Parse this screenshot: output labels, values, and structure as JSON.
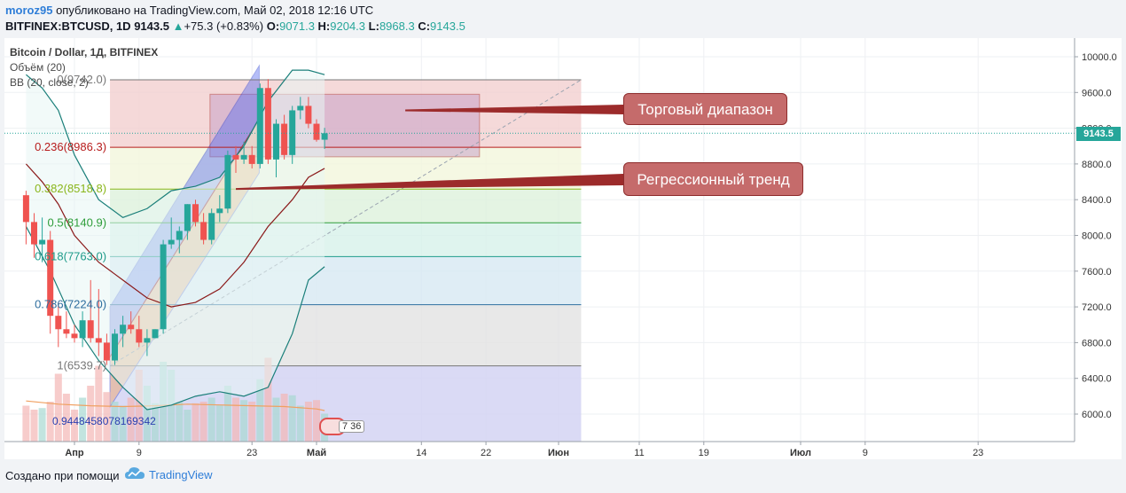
{
  "header": {
    "author": "moroz95",
    "published_text": " опубликовано на TradingView.com, Май 02, 2018 12:16 UTC",
    "symbol": "BITFINEX:BTCUSD, 1D",
    "price": "9143.5",
    "change_arrow": "▲",
    "change": "+75.3 (+0.83%)",
    "o_label": "O:",
    "o_value": "9071.3",
    "h_label": "H:",
    "h_value": "9204.3",
    "l_label": "L:",
    "l_value": "8968.3",
    "c_label": "C:",
    "c_value": "9143.5"
  },
  "legend": {
    "title": "Bitcoin / Dollar, 1Д, BITFINEX",
    "volume": "Объём (20)",
    "bb": "BB (20, close, 2)"
  },
  "annotations": {
    "trading_range": "Торговый диапазон",
    "regression_trend": "Регрессионный тренд",
    "volume_value": "0.9448458078169342",
    "events_badge": "7 36"
  },
  "footer": {
    "made_with": "Создано при помощи",
    "brand": "TradingView"
  },
  "colors": {
    "up": "#26a69a",
    "down": "#ef5350",
    "bb_line": "#1b7f7a",
    "bb_basis": "#8b1a1a",
    "price_label": "#26a69a"
  },
  "chart_data": {
    "type": "candlestick",
    "title": "Bitcoin / Dollar, 1Д, BITFINEX",
    "ylim": [
      5700,
      10200
    ],
    "y_ticks": [
      6000,
      6400,
      6800,
      7200,
      7600,
      8000,
      8400,
      8800,
      9200,
      9600,
      10000
    ],
    "y_tick_labels": [
      "6000.0",
      "6400.0",
      "6800.0",
      "7200.0",
      "7600.0",
      "8000.0",
      "8400.0",
      "8800.0",
      "9200.0",
      "9600.0",
      "10000.0"
    ],
    "x_ticks": [
      {
        "day": 0,
        "label": "Апр"
      },
      {
        "day": 8,
        "label": "9"
      },
      {
        "day": 22,
        "label": "23"
      },
      {
        "day": 30,
        "label": "Май"
      },
      {
        "day": 43,
        "label": "14"
      },
      {
        "day": 51,
        "label": "22"
      },
      {
        "day": 60,
        "label": "Июн"
      },
      {
        "day": 70,
        "label": "11"
      },
      {
        "day": 78,
        "label": "19"
      },
      {
        "day": 90,
        "label": "Июл"
      },
      {
        "day": 98,
        "label": "9"
      },
      {
        "day": 112,
        "label": "23"
      }
    ],
    "candles": [
      {
        "day": -6,
        "o": 8450,
        "h": 8500,
        "l": 7900,
        "c": 8150,
        "v": 0.45
      },
      {
        "day": -5,
        "o": 8150,
        "h": 8250,
        "l": 7750,
        "c": 7900,
        "v": 0.4
      },
      {
        "day": -4,
        "o": 7900,
        "h": 8200,
        "l": 7700,
        "c": 7950,
        "v": 0.42
      },
      {
        "day": -3,
        "o": 7950,
        "h": 8050,
        "l": 6900,
        "c": 7100,
        "v": 0.5
      },
      {
        "day": -2,
        "o": 7100,
        "h": 7250,
        "l": 6750,
        "c": 6950,
        "v": 0.85
      },
      {
        "day": -1,
        "o": 6950,
        "h": 7150,
        "l": 6850,
        "c": 6900,
        "v": 0.6
      },
      {
        "day": 0,
        "o": 6900,
        "h": 7000,
        "l": 6800,
        "c": 6850,
        "v": 0.4
      },
      {
        "day": 1,
        "o": 6850,
        "h": 7150,
        "l": 6750,
        "c": 7050,
        "v": 0.55
      },
      {
        "day": 2,
        "o": 7050,
        "h": 7500,
        "l": 6800,
        "c": 6850,
        "v": 0.7
      },
      {
        "day": 3,
        "o": 6850,
        "h": 7400,
        "l": 6650,
        "c": 6800,
        "v": 0.95
      },
      {
        "day": 4,
        "o": 6800,
        "h": 6900,
        "l": 6550,
        "c": 6600,
        "v": 0.62
      },
      {
        "day": 5,
        "o": 6600,
        "h": 6950,
        "l": 6550,
        "c": 6900,
        "v": 0.5
      },
      {
        "day": 6,
        "o": 6900,
        "h": 7100,
        "l": 6750,
        "c": 7000,
        "v": 0.45
      },
      {
        "day": 7,
        "o": 7000,
        "h": 7150,
        "l": 6900,
        "c": 6950,
        "v": 0.55
      },
      {
        "day": 8,
        "o": 6950,
        "h": 7100,
        "l": 6750,
        "c": 6800,
        "v": 0.9
      },
      {
        "day": 9,
        "o": 6800,
        "h": 6950,
        "l": 6650,
        "c": 6850,
        "v": 0.7
      },
      {
        "day": 10,
        "o": 6850,
        "h": 6950,
        "l": 6850,
        "c": 6950,
        "v": 0.48
      },
      {
        "day": 11,
        "o": 6950,
        "h": 7950,
        "l": 6900,
        "c": 7900,
        "v": 1.0
      },
      {
        "day": 12,
        "o": 7900,
        "h": 8200,
        "l": 7850,
        "c": 7950,
        "v": 0.9
      },
      {
        "day": 13,
        "o": 7950,
        "h": 8100,
        "l": 7800,
        "c": 8050,
        "v": 0.5
      },
      {
        "day": 14,
        "o": 8050,
        "h": 8350,
        "l": 7950,
        "c": 8350,
        "v": 0.4
      },
      {
        "day": 15,
        "o": 8350,
        "h": 8400,
        "l": 8100,
        "c": 8150,
        "v": 0.48
      },
      {
        "day": 16,
        "o": 8150,
        "h": 8250,
        "l": 7900,
        "c": 7950,
        "v": 0.5
      },
      {
        "day": 17,
        "o": 7950,
        "h": 8300,
        "l": 7900,
        "c": 8250,
        "v": 0.55
      },
      {
        "day": 18,
        "o": 8250,
        "h": 8450,
        "l": 8150,
        "c": 8300,
        "v": 0.46
      },
      {
        "day": 19,
        "o": 8300,
        "h": 8950,
        "l": 8250,
        "c": 8900,
        "v": 0.7
      },
      {
        "day": 20,
        "o": 8900,
        "h": 9000,
        "l": 8700,
        "c": 8850,
        "v": 0.55
      },
      {
        "day": 21,
        "o": 8850,
        "h": 9050,
        "l": 8800,
        "c": 8900,
        "v": 0.52
      },
      {
        "day": 22,
        "o": 8900,
        "h": 9000,
        "l": 8750,
        "c": 8800,
        "v": 0.5
      },
      {
        "day": 23,
        "o": 8800,
        "h": 9700,
        "l": 8750,
        "c": 9650,
        "v": 0.78
      },
      {
        "day": 24,
        "o": 9650,
        "h": 9750,
        "l": 8800,
        "c": 8850,
        "v": 1.05
      },
      {
        "day": 25,
        "o": 8850,
        "h": 9300,
        "l": 8650,
        "c": 9250,
        "v": 0.55
      },
      {
        "day": 26,
        "o": 9250,
        "h": 9350,
        "l": 8850,
        "c": 8900,
        "v": 0.6
      },
      {
        "day": 27,
        "o": 8900,
        "h": 9450,
        "l": 8800,
        "c": 9400,
        "v": 0.58
      },
      {
        "day": 28,
        "o": 9400,
        "h": 9550,
        "l": 9300,
        "c": 9450,
        "v": 0.45
      },
      {
        "day": 29,
        "o": 9450,
        "h": 9550,
        "l": 9200,
        "c": 9250,
        "v": 0.5
      },
      {
        "day": 30,
        "o": 9250,
        "h": 9300,
        "l": 9050,
        "c": 9070,
        "v": 0.52
      },
      {
        "day": 31,
        "o": 9071.3,
        "h": 9204.3,
        "l": 8968.3,
        "c": 9143.5,
        "v": 0.35
      }
    ],
    "bollinger": {
      "upper": [
        [
          -6,
          9800
        ],
        [
          -4,
          9650
        ],
        [
          -2,
          9400
        ],
        [
          0,
          8900
        ],
        [
          3,
          8400
        ],
        [
          6,
          8200
        ],
        [
          9,
          8300
        ],
        [
          12,
          8500
        ],
        [
          15,
          8550
        ],
        [
          18,
          8650
        ],
        [
          21,
          9000
        ],
        [
          24,
          9500
        ],
        [
          27,
          9850
        ],
        [
          29,
          9850
        ],
        [
          31,
          9800
        ]
      ],
      "basis": [
        [
          -6,
          8800
        ],
        [
          -4,
          8600
        ],
        [
          -2,
          8350
        ],
        [
          0,
          8000
        ],
        [
          3,
          7700
        ],
        [
          6,
          7500
        ],
        [
          9,
          7300
        ],
        [
          12,
          7200
        ],
        [
          15,
          7250
        ],
        [
          18,
          7400
        ],
        [
          21,
          7700
        ],
        [
          24,
          8100
        ],
        [
          27,
          8400
        ],
        [
          29,
          8650
        ],
        [
          31,
          8750
        ]
      ],
      "lower": [
        [
          -6,
          8100
        ],
        [
          -3,
          7600
        ],
        [
          0,
          7000
        ],
        [
          3,
          6600
        ],
        [
          6,
          6300
        ],
        [
          9,
          6050
        ],
        [
          12,
          6100
        ],
        [
          15,
          6200
        ],
        [
          18,
          6250
        ],
        [
          21,
          6200
        ],
        [
          24,
          6300
        ],
        [
          27,
          6900
        ],
        [
          29,
          7500
        ],
        [
          31,
          7650
        ]
      ]
    },
    "fibonacci": [
      {
        "level": "0",
        "price": 9742.0,
        "label": "0(9742.0)",
        "color": "#777777"
      },
      {
        "level": "0.236",
        "price": 8986.3,
        "label": "0.236(8986.3)",
        "color": "#b71c1c"
      },
      {
        "level": "0.382",
        "price": 8518.8,
        "label": "0.382(8518.8)",
        "color": "#8ab61a"
      },
      {
        "level": "0.5",
        "price": 8140.9,
        "label": "0.5(8140.9)",
        "color": "#2e9d3a"
      },
      {
        "level": "0.618",
        "price": 7763.0,
        "label": "0.618(7763.0)",
        "color": "#1f9b8a"
      },
      {
        "level": "0.786",
        "price": 7224.0,
        "label": "0.786(7224.0)",
        "color": "#2f6f9f"
      },
      {
        "level": "1",
        "price": 6539.7,
        "label": "1(6539.7)",
        "color": "#777777"
      }
    ],
    "last_price": 9143.5
  }
}
